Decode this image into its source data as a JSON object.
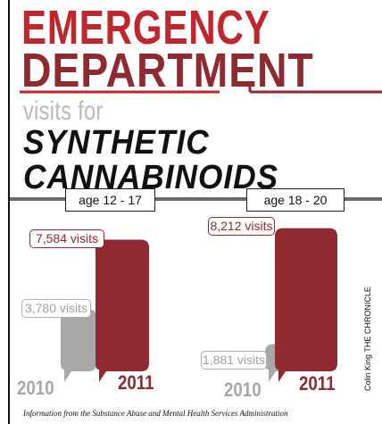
{
  "title": {
    "line1": "EMERGENCY",
    "line2": "DEPARTMENT",
    "line3": "visits for",
    "line4": "SYNTHETIC",
    "line5": "CANNABINOIDS"
  },
  "colors": {
    "red": "#c0272d",
    "dark_red": "#8e2a30",
    "gray": "#a8a8a8",
    "light_gray": "#b9b9b9"
  },
  "credit": "Colin King THE CHRONICLE",
  "source": "Information from the Substance Abuse and Mental Health Services Administration",
  "chart_data": [
    {
      "type": "bar",
      "group_label": "age 12 - 17",
      "categories": [
        "2010",
        "2011"
      ],
      "values": [
        3780,
        7584
      ],
      "value_labels": [
        "3,780 visits",
        "7,584 visits"
      ],
      "series_colors": [
        "#a8a8a8",
        "#8e2a30"
      ]
    },
    {
      "type": "bar",
      "group_label": "age 18 - 20",
      "categories": [
        "2010",
        "2011"
      ],
      "values": [
        1881,
        8212
      ],
      "value_labels": [
        "1,881 visits",
        "8,212 visits"
      ],
      "series_colors": [
        "#a8a8a8",
        "#8e2a30"
      ]
    }
  ]
}
